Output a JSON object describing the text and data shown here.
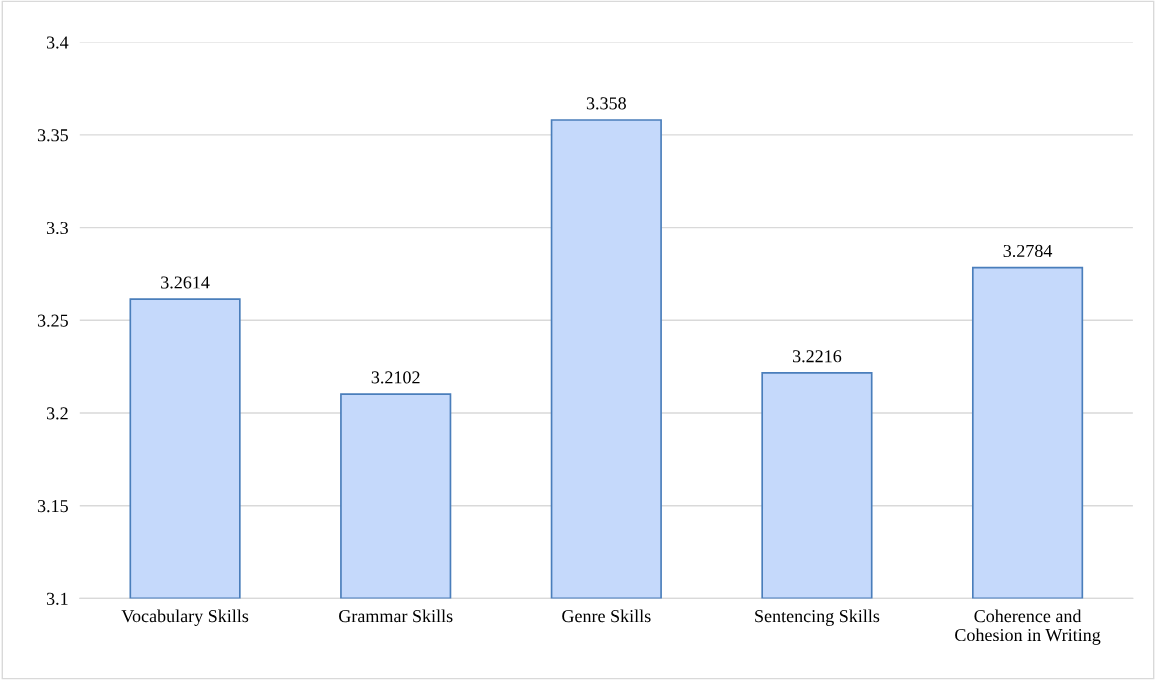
{
  "chart_data": {
    "type": "bar",
    "categories": [
      "Vocabulary Skills",
      "Grammar Skills",
      "Genre Skills",
      "Sentencing Skills",
      "Coherence and\nCohesion in Writing"
    ],
    "values": [
      3.2614,
      3.2102,
      3.358,
      3.2216,
      3.2784
    ],
    "color": "#c5d9fb",
    "ylim": [
      3.1,
      3.4
    ],
    "yticks": [
      3.1,
      3.15,
      3.2,
      3.25,
      3.3,
      3.35,
      3.4
    ],
    "grid": "y",
    "data_labels": true,
    "legend": false
  }
}
